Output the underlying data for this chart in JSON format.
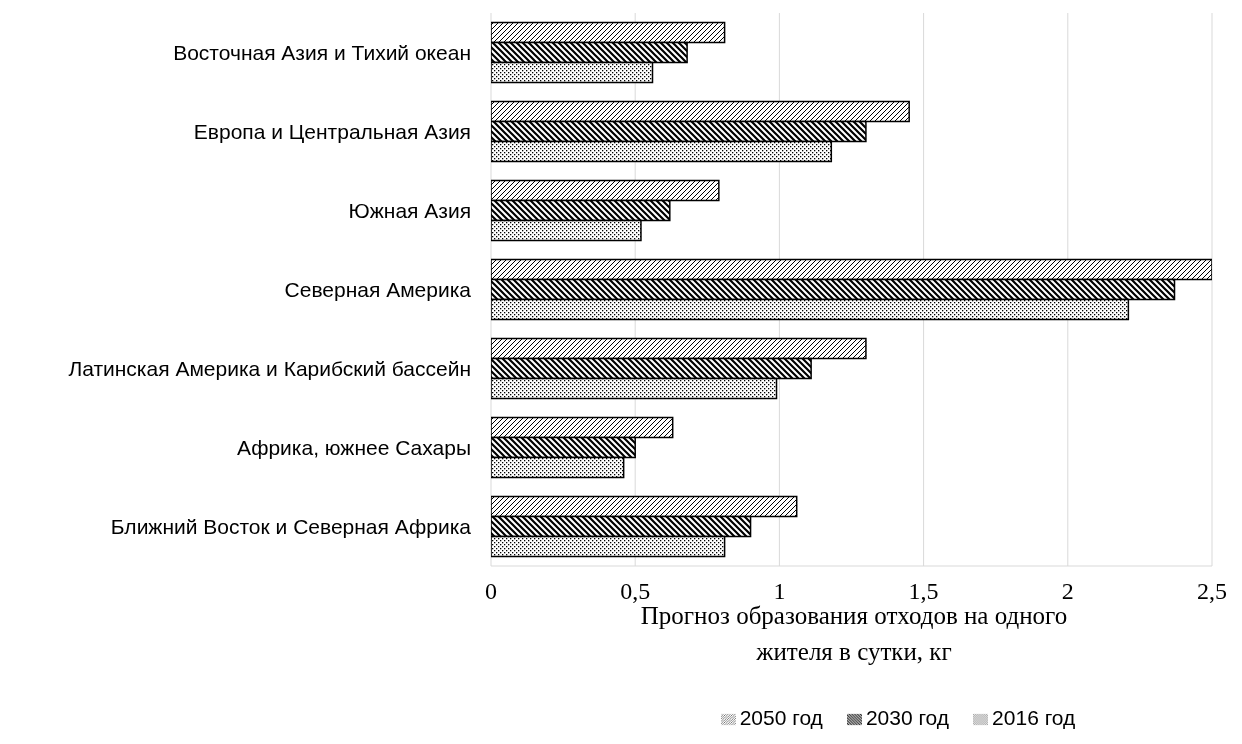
{
  "chart_data": {
    "type": "bar",
    "orientation": "horizontal",
    "categories": [
      "Восточная Азия и Тихий океан",
      "Европа и Центральная Азия",
      "Южная Азия",
      "Северная Америка",
      "Латинская Америка и Карибский бассейн",
      "Африка, южнее Сахары",
      "Ближний Восток и Северная Африка"
    ],
    "series": [
      {
        "name": "2050 год",
        "color": "#000000",
        "values": [
          0.81,
          1.45,
          0.79,
          2.5,
          1.3,
          0.63,
          1.06
        ]
      },
      {
        "name": "2030 год",
        "color": "#000000",
        "values": [
          0.68,
          1.3,
          0.62,
          2.37,
          1.11,
          0.5,
          0.9
        ]
      },
      {
        "name": "2016 год",
        "color": "#000000",
        "values": [
          0.56,
          1.18,
          0.52,
          2.21,
          0.99,
          0.46,
          0.81
        ]
      }
    ],
    "xlabel": "Прогноз образования отходов на одного жителя в сутки, кг",
    "xlim": [
      0,
      2.5
    ],
    "xticks": [
      0,
      {
        "value": 0.5,
        "label": "0,5"
      },
      1,
      {
        "value": 1.5,
        "label": "1,5"
      },
      2,
      {
        "value": 2.5,
        "label": "2,5"
      }
    ],
    "grid": "x",
    "legend": "bottom"
  }
}
